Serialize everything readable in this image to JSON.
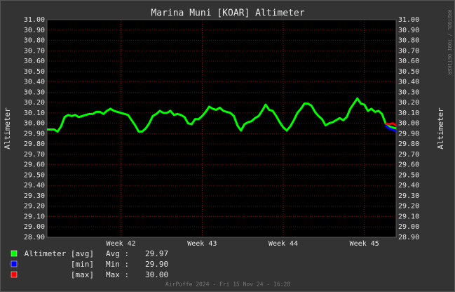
{
  "chart_data": {
    "type": "line",
    "title": "Marina Muni [KOAR] Altimeter",
    "y_label": "Altimeter",
    "side_text": "RRDTOOL / TOBI OETIKER",
    "footer": "AirPuffe 2024 - Fri 15 Nov 24 - 16:28",
    "grid": true,
    "categories": [
      null,
      null,
      null,
      null,
      null,
      null,
      null,
      null,
      null,
      null,
      null,
      null,
      null,
      null,
      null,
      null,
      null,
      null,
      null,
      null,
      null,
      "Week 42",
      null,
      null,
      null,
      null,
      null,
      null,
      null,
      null,
      null,
      null,
      null,
      null,
      null,
      null,
      null,
      null,
      null,
      null,
      null,
      null,
      null,
      null,
      "Week 43",
      null,
      null,
      null,
      null,
      null,
      null,
      null,
      null,
      null,
      null,
      null,
      null,
      null,
      null,
      null,
      null,
      null,
      null,
      null,
      null,
      null,
      null,
      "Week 44",
      null,
      null,
      null,
      null,
      null,
      null,
      null,
      null,
      null,
      null,
      null,
      null,
      null,
      null,
      null,
      null,
      null,
      null,
      null,
      null,
      null,
      null,
      "Week 45",
      null,
      null,
      null,
      null,
      null,
      null,
      null,
      null,
      null
    ],
    "series": [
      {
        "name": "Altimeter [avg]",
        "color": "#00ff00",
        "values": [
          29.94,
          29.94,
          29.94,
          29.92,
          29.97,
          30.06,
          30.08,
          30.07,
          30.08,
          30.06,
          30.07,
          30.08,
          30.09,
          30.09,
          30.11,
          30.11,
          30.09,
          30.12,
          30.14,
          30.12,
          30.11,
          30.1,
          30.09,
          30.08,
          30.03,
          29.98,
          29.92,
          29.92,
          29.95,
          30.0,
          30.07,
          30.09,
          30.12,
          30.1,
          30.1,
          30.12,
          30.08,
          30.09,
          30.08,
          30.06,
          30.0,
          29.99,
          30.04,
          30.04,
          30.07,
          30.11,
          30.16,
          30.14,
          30.13,
          30.15,
          30.12,
          30.11,
          30.1,
          30.07,
          29.98,
          29.93,
          29.99,
          30.01,
          30.02,
          30.05,
          30.07,
          30.12,
          30.18,
          30.13,
          30.12,
          30.07,
          30.01,
          29.96,
          29.93,
          29.97,
          30.03,
          30.1,
          30.14,
          30.19,
          30.19,
          30.17,
          30.11,
          30.07,
          30.04,
          29.98,
          30.0,
          30.01,
          30.03,
          30.05,
          30.03,
          30.06,
          30.14,
          30.19,
          30.24,
          30.19,
          30.18,
          30.12,
          30.14,
          30.11,
          30.12,
          30.09,
          30.0,
          29.97,
          29.96,
          29.95
        ]
      },
      {
        "name": "[min]",
        "color": "#0000ff",
        "values": [
          null,
          null,
          null,
          null,
          null,
          null,
          null,
          null,
          null,
          null,
          null,
          null,
          null,
          null,
          null,
          null,
          null,
          null,
          null,
          null,
          null,
          null,
          null,
          null,
          null,
          null,
          null,
          null,
          null,
          null,
          null,
          null,
          null,
          null,
          null,
          null,
          null,
          null,
          null,
          null,
          null,
          null,
          null,
          null,
          null,
          null,
          null,
          null,
          null,
          null,
          null,
          null,
          null,
          null,
          null,
          null,
          null,
          null,
          null,
          null,
          null,
          null,
          null,
          null,
          null,
          null,
          null,
          null,
          null,
          null,
          null,
          null,
          null,
          null,
          null,
          null,
          null,
          null,
          null,
          null,
          null,
          null,
          null,
          null,
          null,
          null,
          null,
          null,
          null,
          null,
          null,
          null,
          null,
          null,
          null,
          null,
          29.98,
          29.95,
          29.94,
          29.92
        ]
      },
      {
        "name": "[max]",
        "color": "#ff0000",
        "values": [
          null,
          null,
          null,
          null,
          null,
          null,
          null,
          null,
          null,
          null,
          null,
          null,
          null,
          null,
          null,
          null,
          null,
          null,
          null,
          null,
          null,
          null,
          null,
          null,
          null,
          null,
          null,
          null,
          null,
          null,
          null,
          null,
          null,
          null,
          null,
          null,
          null,
          null,
          null,
          null,
          null,
          null,
          null,
          null,
          null,
          null,
          null,
          null,
          null,
          null,
          null,
          null,
          null,
          null,
          null,
          null,
          null,
          null,
          null,
          null,
          null,
          null,
          null,
          null,
          null,
          null,
          null,
          null,
          null,
          null,
          null,
          null,
          null,
          null,
          null,
          null,
          null,
          null,
          null,
          null,
          null,
          null,
          null,
          null,
          null,
          null,
          null,
          null,
          null,
          null,
          null,
          null,
          null,
          null,
          null,
          null,
          30.0,
          29.99,
          30.0,
          29.98
        ]
      }
    ],
    "stats": {
      "names": [
        "Avg :",
        "Min :",
        "Max :"
      ],
      "values": [
        29.97,
        29.9,
        30
      ],
      "value_labels": [
        "29.97",
        "29.90",
        "30.00"
      ]
    },
    "ylim": [
      28.9,
      31
    ],
    "yticks": [
      {
        "value": 28.9,
        "label": "28.90"
      },
      {
        "value": 29,
        "label": "29.00"
      },
      {
        "value": 29.1,
        "label": "29.10"
      },
      {
        "value": 29.2,
        "label": "29.20"
      },
      {
        "value": 29.3,
        "label": "29.30"
      },
      {
        "value": 29.4,
        "label": "29.40"
      },
      {
        "value": 29.5,
        "label": "29.50"
      },
      {
        "value": 29.6,
        "label": "29.60"
      },
      {
        "value": 29.7,
        "label": "29.70"
      },
      {
        "value": 29.8,
        "label": "29.80"
      },
      {
        "value": 29.9,
        "label": "29.90"
      },
      {
        "value": 30,
        "label": "30.00"
      },
      {
        "value": 30.1,
        "label": "30.10"
      },
      {
        "value": 30.2,
        "label": "30.20"
      },
      {
        "value": 30.3,
        "label": "30.30"
      },
      {
        "value": 30.4,
        "label": "30.40"
      },
      {
        "value": 30.5,
        "label": "30.50"
      },
      {
        "value": 30.6,
        "label": "30.60"
      },
      {
        "value": 30.7,
        "label": "30.70"
      },
      {
        "value": 30.8,
        "label": "30.80"
      },
      {
        "value": 30.9,
        "label": "30.90"
      },
      {
        "value": 31,
        "label": "31.00"
      }
    ]
  }
}
